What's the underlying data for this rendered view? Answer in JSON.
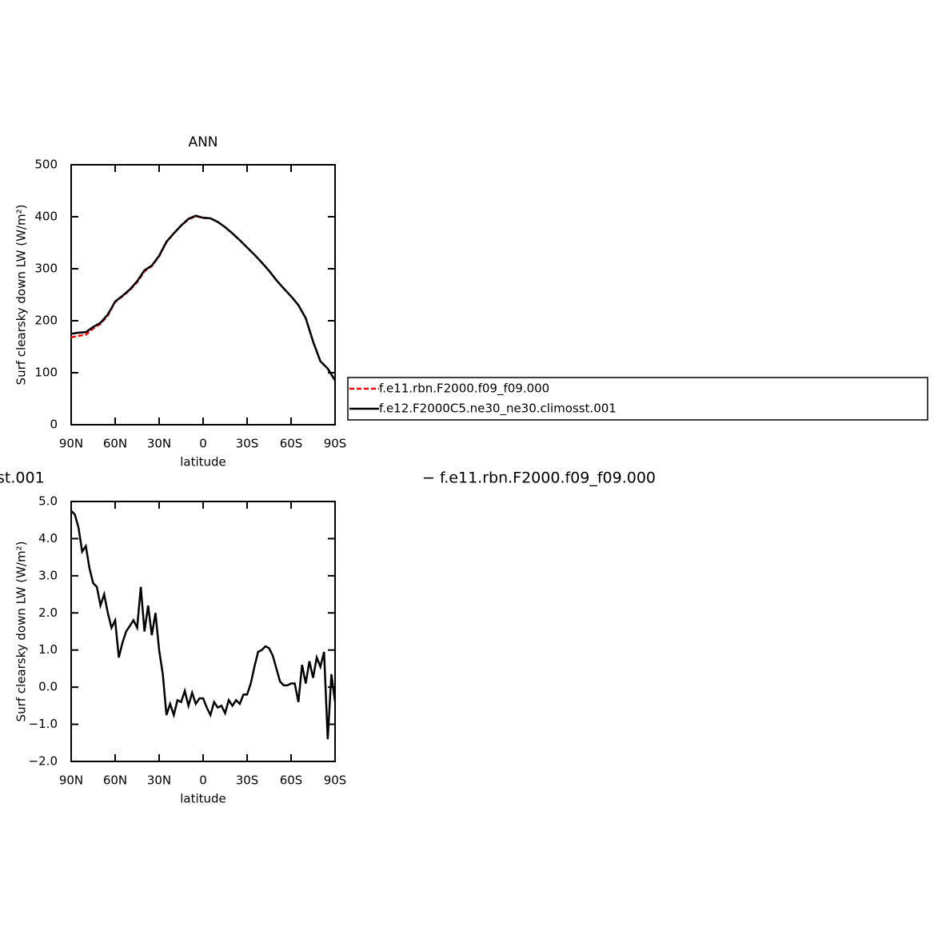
{
  "chart_data": [
    {
      "type": "line",
      "title": "ANN",
      "xlabel": "latitude",
      "ylabel": "Surf clearsky down LW (W/m²)",
      "xlim": [
        90,
        -90
      ],
      "xticks": [
        {
          "value": 90,
          "label": "90N"
        },
        {
          "value": 60,
          "label": "60N"
        },
        {
          "value": 30,
          "label": "30N"
        },
        0,
        {
          "value": -30,
          "label": "30S"
        },
        {
          "value": -60,
          "label": "60S"
        },
        {
          "value": -90,
          "label": "90S"
        }
      ],
      "ylim": [
        0,
        500
      ],
      "yticks": [
        0,
        100,
        200,
        300,
        400,
        500
      ],
      "legend": true,
      "x": [
        90,
        85,
        80,
        75,
        70,
        65,
        60,
        55,
        50,
        45,
        40,
        35,
        30,
        25,
        20,
        15,
        10,
        5,
        0,
        -5,
        -10,
        -15,
        -20,
        -25,
        -30,
        -35,
        -40,
        -45,
        -50,
        -55,
        -60,
        -65,
        -70,
        -75,
        -80,
        -85,
        -90
      ],
      "series": [
        {
          "name": "f.e11.rbn.F2000.f09_f09.000",
          "color": "#ff0000",
          "dashed": true,
          "values": [
            168,
            171,
            173,
            185,
            194,
            210,
            236,
            247,
            259,
            274,
            295,
            305,
            324,
            351,
            368,
            383,
            395,
            401,
            398,
            397,
            390,
            380,
            368,
            355,
            341,
            327,
            312,
            296,
            278,
            262,
            247,
            230,
            205,
            160,
            122,
            108,
            85
          ]
        },
        {
          "name": "f.e12.F2000C5.ne30_ne30.climosst.001",
          "color": "#000000",
          "dashed": false,
          "values": [
            175,
            177,
            178,
            188,
            196,
            212,
            237,
            248,
            260,
            276,
            297,
            306,
            325,
            352,
            368,
            383,
            396,
            402,
            398,
            397,
            390,
            380,
            368,
            355,
            341,
            327,
            312,
            296,
            278,
            262,
            247,
            230,
            205,
            160,
            122,
            108,
            85
          ]
        }
      ]
    },
    {
      "type": "line",
      "xlabel": "latitude",
      "ylabel": "Surf clearsky down LW (W/m²)",
      "annotations": [
        "st.001",
        "− f.e11.rbn.F2000.f09_f09.000"
      ],
      "xlim": [
        90,
        -90
      ],
      "xticks": [
        {
          "value": 90,
          "label": "90N"
        },
        {
          "value": 60,
          "label": "60N"
        },
        {
          "value": 30,
          "label": "30N"
        },
        0,
        {
          "value": -30,
          "label": "30S"
        },
        {
          "value": -60,
          "label": "60S"
        },
        {
          "value": -90,
          "label": "90S"
        }
      ],
      "ylim": [
        -2,
        5
      ],
      "yticks": [
        {
          "value": -2,
          "label": "−2.0"
        },
        {
          "value": -1,
          "label": "−1.0"
        },
        {
          "value": 0,
          "label": "0.0"
        },
        {
          "value": 1,
          "label": "1.0"
        },
        {
          "value": 2,
          "label": "2.0"
        },
        {
          "value": 3,
          "label": "3.0"
        },
        {
          "value": 4,
          "label": "4.0"
        },
        {
          "value": 5,
          "label": "5.0"
        }
      ],
      "legend": false,
      "x": [
        90,
        87.5,
        85,
        82.5,
        80,
        77.5,
        75,
        72.5,
        70,
        67.5,
        65,
        62.5,
        60,
        57.5,
        55,
        52.5,
        50,
        47.5,
        45,
        42.5,
        40,
        37.5,
        35,
        32.5,
        30,
        27.5,
        25,
        22.5,
        20,
        17.5,
        15,
        12.5,
        10,
        7.5,
        5,
        2.5,
        0,
        -2.5,
        -5,
        -7.5,
        -10,
        -12.5,
        -15,
        -17.5,
        -20,
        -22.5,
        -25,
        -27.5,
        -30,
        -32.5,
        -35,
        -37.5,
        -40,
        -42.5,
        -45,
        -47.5,
        -50,
        -52.5,
        -55,
        -57.5,
        -60,
        -62.5,
        -65,
        -67.5,
        -70,
        -72.5,
        -75,
        -77.5,
        -80,
        -82.5,
        -85,
        -87.5,
        -90
      ],
      "series": [
        {
          "color": "#000000",
          "dashed": false,
          "values": [
            4.75,
            4.65,
            4.3,
            3.65,
            3.8,
            3.2,
            2.8,
            2.7,
            2.2,
            2.5,
            2.0,
            1.6,
            1.8,
            0.8,
            1.2,
            1.5,
            1.65,
            1.8,
            1.6,
            2.7,
            1.5,
            2.2,
            1.4,
            2.0,
            1.0,
            0.35,
            -0.75,
            -0.45,
            -0.75,
            -0.35,
            -0.4,
            -0.1,
            -0.5,
            -0.15,
            -0.45,
            -0.3,
            -0.3,
            -0.55,
            -0.75,
            -0.4,
            -0.55,
            -0.5,
            -0.7,
            -0.35,
            -0.5,
            -0.35,
            -0.45,
            -0.2,
            -0.2,
            0.1,
            0.55,
            0.95,
            1.0,
            1.1,
            1.05,
            0.85,
            0.5,
            0.15,
            0.05,
            0.05,
            0.1,
            0.1,
            -0.4,
            0.6,
            0.1,
            0.7,
            0.25,
            0.8,
            0.55,
            0.95,
            -1.4,
            0.35,
            -0.4
          ]
        }
      ]
    }
  ]
}
